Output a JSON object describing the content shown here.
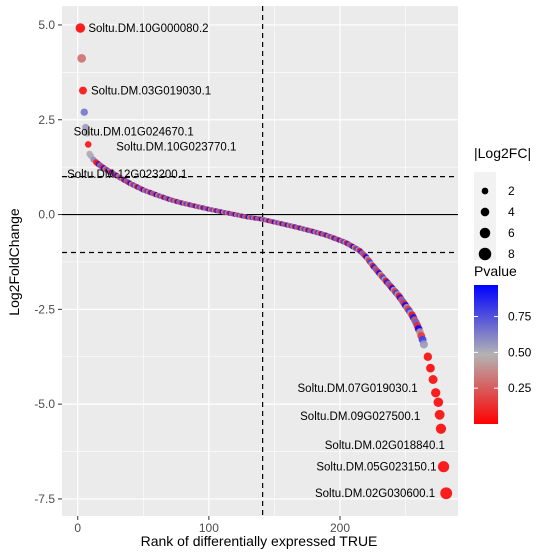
{
  "chart_data": {
    "type": "scatter",
    "title": "",
    "xlabel": "Rank of differentially expressed TRUE",
    "ylabel": "Log2FoldChange",
    "xlim": [
      -12,
      290
    ],
    "ylim": [
      -7.95,
      5.5
    ],
    "x_ticks": [
      {
        "value": 0,
        "label": "0"
      },
      {
        "value": 100,
        "label": "100"
      },
      {
        "value": 200,
        "label": "200"
      }
    ],
    "y_ticks": [
      {
        "value": 5.0,
        "label": "5.0"
      },
      {
        "value": 2.5,
        "label": "2.5"
      },
      {
        "value": 0.0,
        "label": "0.0"
      },
      {
        "value": -2.5,
        "label": "-2.5"
      },
      {
        "value": -5.0,
        "label": "-5.0"
      },
      {
        "value": -7.5,
        "label": "-7.5"
      }
    ],
    "grid": true,
    "reference_lines": {
      "horizontal_solid": 0,
      "horizontal_dashed": [
        1,
        -1
      ],
      "vertical_dashed": 141
    },
    "points": [
      {
        "x": 2,
        "y": 4.92,
        "p": 0.02
      },
      {
        "x": 3,
        "y": 4.12,
        "p": 0.3
      },
      {
        "x": 4,
        "y": 3.27,
        "p": 0.04
      },
      {
        "x": 5,
        "y": 2.7,
        "p": 0.65
      },
      {
        "x": 6,
        "y": 2.3,
        "p": 0.55
      },
      {
        "x": 7,
        "y": 2.15,
        "p": 0.5
      },
      {
        "x": 8,
        "y": 1.85,
        "p": 0.04
      },
      {
        "x": 9,
        "y": 1.6,
        "p": 0.45
      },
      {
        "x": 10,
        "y": 1.55,
        "p": 0.5
      },
      {
        "x": 12,
        "y": 1.45,
        "p": 0.6
      },
      {
        "x": 14,
        "y": 1.38,
        "p": 0.08
      }
    ],
    "curve": {
      "x": [
        15,
        20,
        25,
        30,
        35,
        40,
        50,
        60,
        70,
        80,
        90,
        100,
        110,
        120,
        130,
        140,
        150,
        160,
        170,
        180,
        190,
        200,
        205,
        210,
        215,
        220,
        225,
        230,
        235,
        240,
        245,
        250,
        255,
        258,
        261,
        263,
        265
      ],
      "y": [
        1.35,
        1.22,
        1.12,
        1.02,
        0.92,
        0.82,
        0.65,
        0.52,
        0.4,
        0.3,
        0.22,
        0.14,
        0.07,
        0.0,
        -0.07,
        -0.12,
        -0.2,
        -0.28,
        -0.36,
        -0.45,
        -0.55,
        -0.68,
        -0.75,
        -0.85,
        -0.95,
        -1.12,
        -1.35,
        -1.55,
        -1.75,
        -1.95,
        -2.15,
        -2.4,
        -2.65,
        -2.85,
        -3.1,
        -3.3,
        -3.55
      ],
      "p_cycle": [
        0.05,
        0.9,
        0.25,
        0.7,
        0.1,
        0.95,
        0.4,
        0.15,
        0.8,
        0.55
      ]
    },
    "tail_points": [
      {
        "x": 267,
        "y": -3.75,
        "p": 0.03
      },
      {
        "x": 269,
        "y": -4.05,
        "p": 0.02
      },
      {
        "x": 271,
        "y": -4.35,
        "p": 0.03
      },
      {
        "x": 273,
        "y": -4.7,
        "p": 0.02
      },
      {
        "x": 275,
        "y": -4.95,
        "p": 0.02
      },
      {
        "x": 276,
        "y": -5.28,
        "p": 0.03
      },
      {
        "x": 277,
        "y": -5.65,
        "p": 0.02
      },
      {
        "x": 279,
        "y": -6.65,
        "p": 0.02
      },
      {
        "x": 281,
        "y": -7.35,
        "p": 0.02
      }
    ],
    "annotations": [
      {
        "label": "Soltu.DM.10G000080.2",
        "x": 2,
        "y": 4.92,
        "anchor": "start",
        "dx": 8,
        "dy": 4
      },
      {
        "label": "Soltu.DM.03G019030.1",
        "x": 4,
        "y": 3.27,
        "anchor": "start",
        "dx": 8,
        "dy": 4
      },
      {
        "label": "Soltu.DM.01G024670.1",
        "x": 6,
        "y": 2.3,
        "anchor": "start",
        "dx": -12,
        "dy": 8
      },
      {
        "label": "Soltu.DM.10G023770.1",
        "x": 8,
        "y": 1.85,
        "anchor": "start",
        "dx": 28,
        "dy": 6
      },
      {
        "label": "Soltu.DM.12G023200.1",
        "x": 14,
        "y": 1.38,
        "anchor": "start",
        "dx": -29,
        "dy": 16
      },
      {
        "label": "Soltu.DM.07G019030.1",
        "x": 273,
        "y": -4.7,
        "anchor": "end",
        "dx": -18,
        "dy": -1
      },
      {
        "label": "Soltu.DM.09G027500.1",
        "x": 275,
        "y": -4.95,
        "anchor": "end",
        "dx": -18,
        "dy": 18
      },
      {
        "label": "Soltu.DM.02G018840.1",
        "x": 277,
        "y": -5.65,
        "anchor": "end",
        "dx": 4,
        "dy": 20
      },
      {
        "label": "Soltu.DM.05G023150.1",
        "x": 279,
        "y": -6.65,
        "anchor": "end",
        "dx": -7,
        "dy": 4
      },
      {
        "label": "Soltu.DM.02G030600.1",
        "x": 281,
        "y": -7.35,
        "anchor": "end",
        "dx": -11,
        "dy": 4
      }
    ],
    "legend_size": {
      "title": "|Log2FC|",
      "entries": [
        {
          "label": "2",
          "value": 2
        },
        {
          "label": "4",
          "value": 4
        },
        {
          "label": "6",
          "value": 6
        },
        {
          "label": "8",
          "value": 8
        }
      ]
    },
    "legend_color": {
      "title": "Pvalue",
      "ticks": [
        {
          "label": "0.75",
          "value": 0.75
        },
        {
          "label": "0.50",
          "value": 0.5
        },
        {
          "label": "0.25",
          "value": 0.25
        }
      ],
      "range": [
        0.0,
        0.97
      ],
      "low_color": "#ff0000",
      "mid_color": "#b3b3b3",
      "high_color": "#0000ff"
    },
    "colors": {
      "panel_background": "#ebebeb",
      "grid_major": "#ffffff",
      "reference_line": "#000000"
    }
  }
}
